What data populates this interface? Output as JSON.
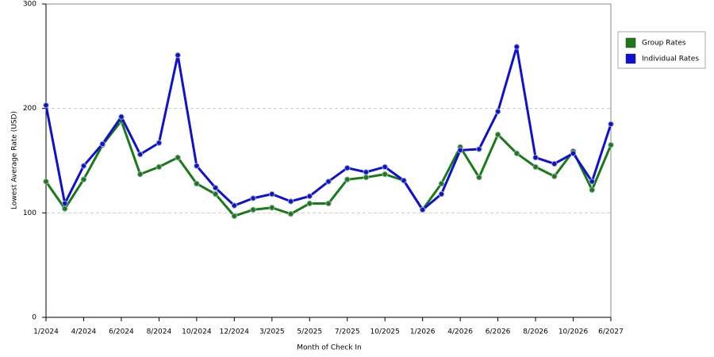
{
  "chart_data": {
    "type": "line",
    "x_label": "Month of Check In",
    "y_label": "Lowest Average Rate (USD)",
    "categories": [
      "1/2024",
      null,
      "4/2024",
      null,
      "6/2024",
      null,
      "8/2024",
      null,
      "10/2024",
      null,
      "12/2024",
      null,
      "3/2025",
      null,
      "5/2025",
      null,
      "7/2025",
      null,
      "10/2025",
      null,
      "1/2026",
      null,
      "4/2026",
      null,
      "6/2026",
      null,
      "8/2026",
      null,
      "10/2026",
      null,
      "6/2027"
    ],
    "series": [
      {
        "name": "Group Rates",
        "color": "#1a7a1a",
        "values": [
          130,
          104,
          132,
          165,
          188,
          137,
          144,
          153,
          128,
          118,
          97,
          103,
          105,
          99,
          109,
          109,
          132,
          134,
          137,
          131,
          103,
          128,
          163,
          134,
          175,
          157,
          144,
          135,
          159,
          122,
          165
        ]
      },
      {
        "name": "Individual Rates",
        "color": "#1010d0",
        "values": [
          203,
          109,
          145,
          166,
          192,
          156,
          167,
          251,
          145,
          124,
          107,
          114,
          118,
          111,
          116,
          130,
          143,
          139,
          144,
          131,
          103,
          118,
          160,
          161,
          197,
          259,
          153,
          147,
          157,
          130,
          185
        ]
      }
    ],
    "ylim": [
      0,
      300
    ],
    "yticks": [
      0,
      100,
      200,
      300
    ],
    "grid": true,
    "legend": "right"
  }
}
